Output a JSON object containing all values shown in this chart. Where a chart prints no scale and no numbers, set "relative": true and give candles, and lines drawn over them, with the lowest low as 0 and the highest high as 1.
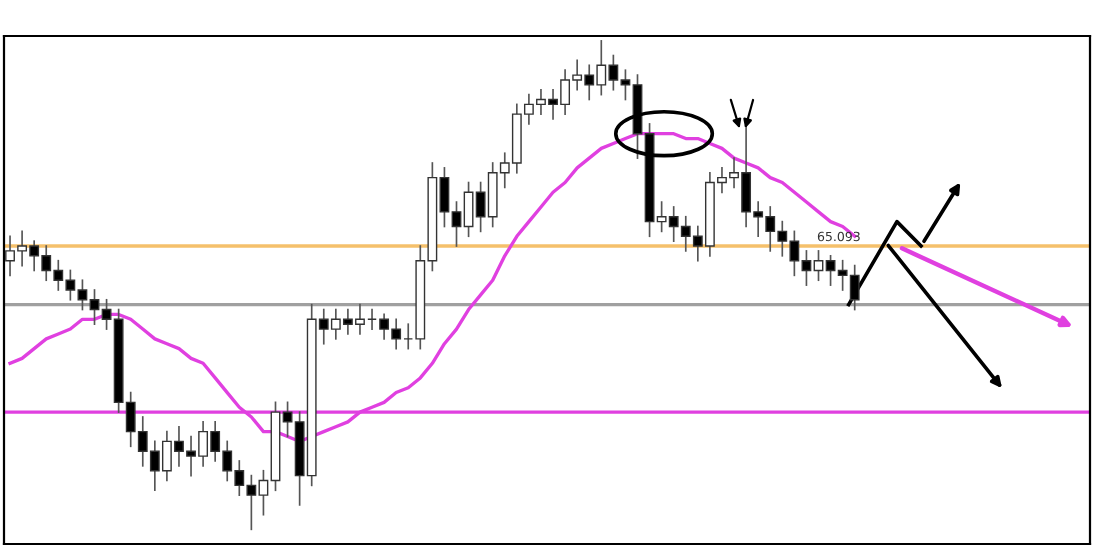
{
  "chart_data": {
    "type": "candlestick",
    "relative": true,
    "categories": [
      null,
      null,
      null,
      null,
      null,
      null,
      null,
      null,
      null,
      null,
      null,
      null,
      null,
      null,
      null,
      null,
      null,
      null,
      null,
      null,
      null,
      null,
      null,
      null,
      null,
      null,
      null,
      null,
      null,
      null,
      null,
      null,
      null,
      null,
      null,
      null,
      null,
      null,
      null,
      null,
      null,
      null,
      null,
      null,
      null,
      null,
      null,
      null,
      null,
      null,
      null,
      null,
      null,
      null,
      null,
      null,
      null,
      null,
      null,
      null,
      null,
      null,
      null,
      null,
      null,
      null,
      null,
      null,
      null,
      null,
      null,
      null,
      null,
      null,
      null,
      null,
      null,
      null,
      null,
      null,
      null,
      null,
      null,
      null,
      null,
      null,
      null,
      null,
      null,
      null
    ],
    "ohlc": [
      [
        0.55,
        0.6,
        0.52,
        0.57
      ],
      [
        0.57,
        0.61,
        0.54,
        0.58
      ],
      [
        0.58,
        0.59,
        0.53,
        0.56
      ],
      [
        0.56,
        0.58,
        0.51,
        0.53
      ],
      [
        0.53,
        0.55,
        0.49,
        0.51
      ],
      [
        0.51,
        0.53,
        0.47,
        0.49
      ],
      [
        0.49,
        0.51,
        0.45,
        0.47
      ],
      [
        0.47,
        0.49,
        0.42,
        0.45
      ],
      [
        0.45,
        0.47,
        0.41,
        0.43
      ],
      [
        0.43,
        0.45,
        0.24,
        0.26
      ],
      [
        0.26,
        0.28,
        0.17,
        0.2
      ],
      [
        0.2,
        0.23,
        0.13,
        0.16
      ],
      [
        0.16,
        0.18,
        0.08,
        0.12
      ],
      [
        0.12,
        0.2,
        0.1,
        0.18
      ],
      [
        0.18,
        0.21,
        0.13,
        0.16
      ],
      [
        0.16,
        0.19,
        0.11,
        0.15
      ],
      [
        0.15,
        0.22,
        0.13,
        0.2
      ],
      [
        0.2,
        0.22,
        0.14,
        0.16
      ],
      [
        0.16,
        0.18,
        0.1,
        0.12
      ],
      [
        0.12,
        0.14,
        0.07,
        0.09
      ],
      [
        0.09,
        0.11,
        0.0,
        0.07
      ],
      [
        0.07,
        0.12,
        0.03,
        0.1
      ],
      [
        0.1,
        0.26,
        0.08,
        0.24
      ],
      [
        0.24,
        0.26,
        0.19,
        0.22
      ],
      [
        0.22,
        0.24,
        0.05,
        0.11
      ],
      [
        0.11,
        0.46,
        0.09,
        0.43
      ],
      [
        0.43,
        0.45,
        0.38,
        0.41
      ],
      [
        0.41,
        0.45,
        0.39,
        0.43
      ],
      [
        0.43,
        0.45,
        0.4,
        0.42
      ],
      [
        0.42,
        0.46,
        0.4,
        0.43
      ],
      [
        0.43,
        0.45,
        0.41,
        0.43
      ],
      [
        0.43,
        0.44,
        0.39,
        0.41
      ],
      [
        0.41,
        0.43,
        0.37,
        0.39
      ],
      [
        0.39,
        0.42,
        0.37,
        0.39
      ],
      [
        0.39,
        0.58,
        0.37,
        0.55
      ],
      [
        0.55,
        0.75,
        0.53,
        0.72
      ],
      [
        0.72,
        0.74,
        0.62,
        0.65
      ],
      [
        0.65,
        0.67,
        0.58,
        0.62
      ],
      [
        0.62,
        0.71,
        0.6,
        0.69
      ],
      [
        0.69,
        0.71,
        0.61,
        0.64
      ],
      [
        0.64,
        0.75,
        0.62,
        0.73
      ],
      [
        0.73,
        0.77,
        0.7,
        0.75
      ],
      [
        0.75,
        0.87,
        0.73,
        0.85
      ],
      [
        0.85,
        0.89,
        0.83,
        0.87
      ],
      [
        0.87,
        0.9,
        0.85,
        0.88
      ],
      [
        0.88,
        0.9,
        0.84,
        0.87
      ],
      [
        0.87,
        0.94,
        0.85,
        0.92
      ],
      [
        0.92,
        0.96,
        0.9,
        0.93
      ],
      [
        0.93,
        0.95,
        0.88,
        0.91
      ],
      [
        0.91,
        1.0,
        0.89,
        0.95
      ],
      [
        0.95,
        0.97,
        0.9,
        0.92
      ],
      [
        0.92,
        0.94,
        0.88,
        0.91
      ],
      [
        0.91,
        0.93,
        0.76,
        0.81
      ],
      [
        0.81,
        0.83,
        0.6,
        0.63
      ],
      [
        0.63,
        0.67,
        0.61,
        0.64
      ],
      [
        0.64,
        0.66,
        0.59,
        0.62
      ],
      [
        0.62,
        0.64,
        0.57,
        0.6
      ],
      [
        0.6,
        0.62,
        0.55,
        0.58
      ],
      [
        0.58,
        0.73,
        0.56,
        0.71
      ],
      [
        0.71,
        0.74,
        0.69,
        0.72
      ],
      [
        0.72,
        0.76,
        0.7,
        0.73
      ],
      [
        0.73,
        0.83,
        0.62,
        0.65
      ],
      [
        0.65,
        0.67,
        0.6,
        0.64
      ],
      [
        0.64,
        0.66,
        0.57,
        0.61
      ],
      [
        0.61,
        0.63,
        0.56,
        0.59
      ],
      [
        0.59,
        0.61,
        0.52,
        0.55
      ],
      [
        0.55,
        0.57,
        0.5,
        0.53
      ],
      [
        0.53,
        0.57,
        0.51,
        0.55
      ],
      [
        0.55,
        0.56,
        0.5,
        0.53
      ],
      [
        0.53,
        0.55,
        0.49,
        0.52
      ],
      [
        0.52,
        0.54,
        0.45,
        0.47
      ],
      null,
      null,
      null,
      null,
      null,
      null,
      null,
      null,
      null,
      null,
      null,
      null,
      null,
      null,
      null,
      null,
      null,
      null,
      null
    ],
    "series": [
      {
        "type": "line",
        "color": "#e040e0",
        "values": [
          0.34,
          0.35,
          0.37,
          0.39,
          0.4,
          0.41,
          0.43,
          0.43,
          0.44,
          0.44,
          0.43,
          0.41,
          0.39,
          0.38,
          0.37,
          0.35,
          0.34,
          0.31,
          0.28,
          0.25,
          0.23,
          0.2,
          0.2,
          0.19,
          0.18,
          0.19,
          0.2,
          0.21,
          0.22,
          0.24,
          0.25,
          0.26,
          0.28,
          0.29,
          0.31,
          0.34,
          0.38,
          0.41,
          0.45,
          0.48,
          0.51,
          0.56,
          0.6,
          0.63,
          0.66,
          0.69,
          0.71,
          0.74,
          0.76,
          0.78,
          0.79,
          0.8,
          0.81,
          0.81,
          0.81,
          0.81,
          0.8,
          0.8,
          0.79,
          0.78,
          0.76,
          0.75,
          0.74,
          0.72,
          0.71,
          0.69,
          0.67,
          0.65,
          0.63,
          0.62,
          0.6,
          null,
          null,
          null,
          null,
          null,
          null,
          null,
          null,
          null,
          null,
          null,
          null,
          null,
          null,
          null,
          null,
          null,
          null,
          null
        ]
      }
    ],
    "ref_lines": [
      {
        "axis": "y",
        "value": 0.58,
        "color": "#f5c06b"
      },
      {
        "axis": "y",
        "value": 0.46,
        "color": "#a0a0a0"
      },
      {
        "axis": "y",
        "value": 0.24,
        "color": "#e040e0"
      }
    ],
    "annotations": [
      "65.093"
    ],
    "grid": false,
    "legend": false
  }
}
